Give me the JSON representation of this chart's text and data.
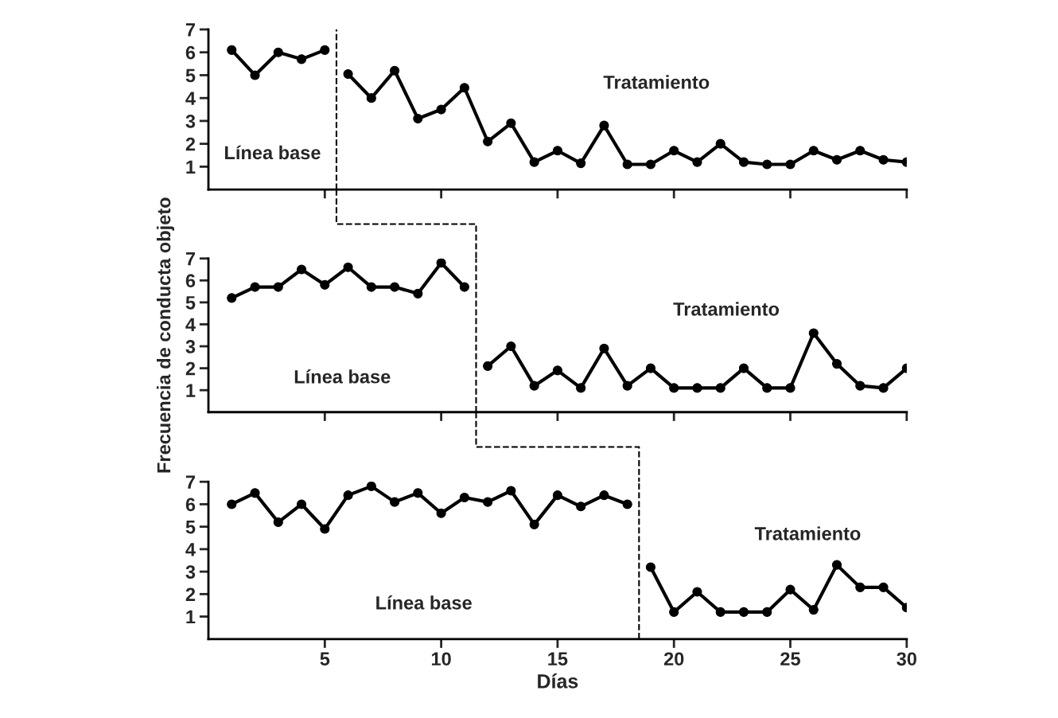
{
  "chart_data": [
    {
      "type": "line",
      "xlim": [
        0,
        30
      ],
      "ylim": [
        0,
        7
      ],
      "xticks": [
        5,
        10,
        15,
        20,
        25,
        30
      ],
      "yticks": [
        1,
        2,
        3,
        4,
        5,
        6,
        7
      ],
      "tick_labels": "y",
      "marker": "circle",
      "line_style": "solid",
      "grid": false,
      "legend": false,
      "series": [
        {
          "color": "#000000",
          "x": [
            1,
            2,
            3,
            4,
            5
          ],
          "values": [
            6.1,
            5.0,
            6.0,
            5.7,
            6.1
          ]
        },
        {
          "color": "#000000",
          "x": [
            6,
            7,
            8,
            9,
            10,
            11,
            12,
            13,
            14,
            15,
            16,
            17,
            18,
            19,
            20,
            21,
            22,
            23,
            24,
            25,
            26,
            27,
            28,
            29,
            30
          ],
          "values": [
            5.05,
            4.0,
            5.2,
            3.1,
            3.5,
            4.45,
            2.1,
            2.9,
            1.2,
            1.7,
            1.15,
            2.8,
            1.1,
            1.1,
            1.7,
            1.2,
            2.0,
            1.2,
            1.1,
            1.1,
            1.7,
            1.3,
            1.7,
            1.3,
            1.2
          ]
        }
      ],
      "ref_lines": [
        {
          "axis": "x",
          "value": 5.5,
          "color": "#000000",
          "line_style": "dashed"
        }
      ],
      "annotations": [
        "Línea base",
        "Tratamiento"
      ]
    },
    {
      "type": "line",
      "xlim": [
        0,
        30
      ],
      "ylim": [
        0,
        7
      ],
      "xticks": [
        5,
        10,
        15,
        20,
        25,
        30
      ],
      "yticks": [
        1,
        2,
        3,
        4,
        5,
        6,
        7
      ],
      "tick_labels": "y",
      "marker": "circle",
      "line_style": "solid",
      "grid": false,
      "legend": false,
      "ylabel": "Frecuencia de conducta objeto",
      "series": [
        {
          "color": "#000000",
          "x": [
            1,
            2,
            3,
            4,
            5,
            6,
            7,
            8,
            9,
            10,
            11
          ],
          "values": [
            5.2,
            5.7,
            5.7,
            6.5,
            5.8,
            6.6,
            5.7,
            5.7,
            5.4,
            6.8,
            5.7
          ]
        },
        {
          "color": "#000000",
          "x": [
            12,
            13,
            14,
            15,
            16,
            17,
            18,
            19,
            20,
            21,
            22,
            23,
            24,
            25,
            26,
            27,
            28,
            29,
            30
          ],
          "values": [
            2.1,
            3.0,
            1.2,
            1.9,
            1.1,
            2.9,
            1.2,
            2.0,
            1.1,
            1.1,
            1.1,
            2.0,
            1.1,
            1.1,
            3.6,
            2.2,
            1.2,
            1.1,
            2.0
          ]
        }
      ],
      "ref_lines": [
        {
          "axis": "x",
          "value": 11.5,
          "color": "#000000",
          "line_style": "dashed"
        }
      ],
      "annotations": [
        "Línea base",
        "Tratamiento"
      ]
    },
    {
      "type": "line",
      "xlim": [
        0,
        30
      ],
      "ylim": [
        0,
        7
      ],
      "xticks": [
        5,
        10,
        15,
        20,
        25,
        30
      ],
      "yticks": [
        1,
        2,
        3,
        4,
        5,
        6,
        7
      ],
      "marker": "circle",
      "line_style": "solid",
      "grid": false,
      "legend": false,
      "xlabel": "Días",
      "series": [
        {
          "color": "#000000",
          "x": [
            1,
            2,
            3,
            4,
            5,
            6,
            7,
            8,
            9,
            10,
            11,
            12,
            13,
            14,
            15,
            16,
            17,
            18
          ],
          "values": [
            6.0,
            6.5,
            5.2,
            6.0,
            4.9,
            6.4,
            6.8,
            6.1,
            6.5,
            5.6,
            6.3,
            6.1,
            6.6,
            5.1,
            6.4,
            5.9,
            6.4,
            6.0
          ]
        },
        {
          "color": "#000000",
          "x": [
            19,
            20,
            21,
            22,
            23,
            24,
            25,
            26,
            27,
            28,
            29,
            30
          ],
          "values": [
            3.2,
            1.2,
            2.1,
            1.2,
            1.2,
            1.2,
            2.2,
            1.3,
            3.3,
            2.3,
            2.3,
            1.4
          ]
        }
      ],
      "ref_lines": [
        {
          "axis": "x",
          "value": 18.5,
          "color": "#000000",
          "line_style": "dashed"
        }
      ],
      "annotations": [
        "Línea base",
        "Tratamiento"
      ]
    }
  ]
}
